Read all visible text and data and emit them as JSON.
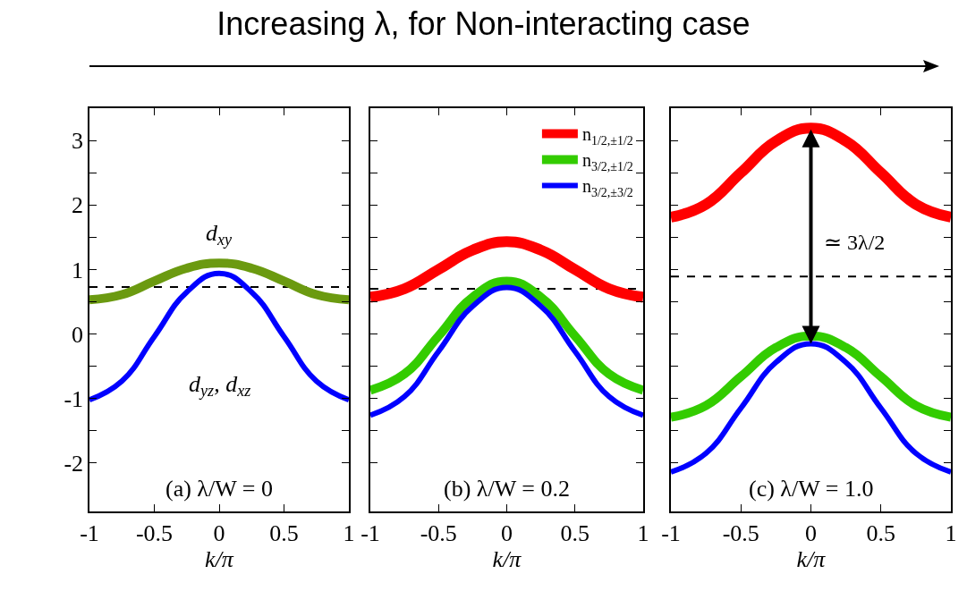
{
  "chart_data": [
    {
      "type": "line",
      "title": "Increasing λ, for Non-interacting case",
      "xlabel": "k/π",
      "x": [
        -1,
        -0.75,
        -0.5,
        -0.25,
        0,
        0.25,
        0.5,
        0.75,
        1
      ],
      "series": [
        {
          "name": "d$_{xy}$",
          "color": "#6b9a10",
          "values": [
            0.53,
            0.61,
            0.82,
            1.02,
            1.1,
            1.02,
            0.82,
            0.61,
            0.53
          ]
        },
        {
          "name": "d$_{yz}$, d$_{xz}$",
          "color": "#0000ff",
          "values": [
            -1.02,
            -0.73,
            -0.04,
            0.65,
            0.94,
            0.65,
            -0.04,
            -0.73,
            -1.02
          ]
        }
      ],
      "xlim": [
        -1,
        1
      ],
      "xticks": [
        -1,
        -0.5,
        0,
        0.5,
        1
      ],
      "ylim": [
        -2.75,
        3.5
      ],
      "yticks": [
        -2,
        {
          "value": -1.5,
          "label": null
        },
        -1,
        {
          "value": -0.5,
          "label": null
        },
        0,
        {
          "value": 0.5,
          "label": null
        },
        1,
        {
          "value": 1.5,
          "label": null
        },
        2,
        {
          "value": 2.5,
          "label": null
        },
        3
      ],
      "ref_lines": [
        {
          "axis": "y",
          "value": 0.73,
          "color": "#000000",
          "line_style": "dashed"
        }
      ],
      "annotations": [
        "(a) λ/W = 0"
      ],
      "grid": false,
      "legend": false
    },
    {
      "type": "line",
      "xlabel": "k/π",
      "x": [
        -1,
        -0.75,
        -0.5,
        -0.25,
        0,
        0.25,
        0.5,
        0.75,
        1
      ],
      "series": [
        {
          "name": "n$_{1/2,±1/2}$",
          "color": "#ff0000",
          "values": [
            0.57,
            0.7,
            1.0,
            1.3,
            1.43,
            1.3,
            1.0,
            0.7,
            0.57
          ]
        },
        {
          "name": "n$_{3/2,±1/2}$",
          "color": "#33cc00",
          "values": [
            -0.87,
            -0.62,
            -0.03,
            0.57,
            0.82,
            0.57,
            -0.03,
            -0.62,
            -0.87
          ]
        },
        {
          "name": "n$_{3/2,±3/2}$",
          "color": "#0000ff",
          "values": [
            -1.26,
            -0.97,
            -0.27,
            0.43,
            0.72,
            0.43,
            -0.27,
            -0.97,
            -1.26
          ]
        }
      ],
      "xlim": [
        -1,
        1
      ],
      "xticks": [
        -1,
        -0.5,
        0,
        0.5,
        1
      ],
      "ylim": [
        -2.75,
        3.5
      ],
      "yticks": [
        {
          "value": -2,
          "label": null
        },
        {
          "value": -1.5,
          "label": null
        },
        {
          "value": -1,
          "label": null
        },
        {
          "value": -0.5,
          "label": null
        },
        {
          "value": 0,
          "label": null
        },
        {
          "value": 0.5,
          "label": null
        },
        {
          "value": 1,
          "label": null
        },
        {
          "value": 1.5,
          "label": null
        },
        {
          "value": 2,
          "label": null
        },
        {
          "value": 2.5,
          "label": null
        },
        {
          "value": 3,
          "label": null
        }
      ],
      "tick_labels": "x",
      "ref_lines": [
        {
          "axis": "y",
          "value": 0.7,
          "color": "#000000",
          "line_style": "dashed"
        }
      ],
      "annotations": [
        "(b) λ/W = 0.2"
      ],
      "grid": false,
      "legend": "top right"
    },
    {
      "type": "line",
      "xlabel": "k/π",
      "x": [
        -1,
        -0.75,
        -0.5,
        -0.25,
        0,
        0.25,
        0.5,
        0.75,
        1
      ],
      "series": [
        {
          "color": "#ff0000",
          "values": [
            1.81,
            2.01,
            2.5,
            2.99,
            3.19,
            2.99,
            2.5,
            2.01,
            1.81
          ]
        },
        {
          "color": "#33cc00",
          "values": [
            -1.29,
            -1.11,
            -0.66,
            -0.21,
            -0.03,
            -0.21,
            -0.66,
            -1.11,
            -1.29
          ]
        },
        {
          "color": "#0000ff",
          "values": [
            -2.14,
            -1.85,
            -1.15,
            -0.44,
            -0.15,
            -0.44,
            -1.15,
            -1.85,
            -2.14
          ]
        }
      ],
      "xlim": [
        -1,
        1
      ],
      "xticks": [
        -1,
        -0.5,
        0,
        0.5,
        1
      ],
      "ylim": [
        -2.75,
        3.5
      ],
      "yticks": [
        {
          "value": -2,
          "label": null
        },
        {
          "value": -1.5,
          "label": null
        },
        {
          "value": -1,
          "label": null
        },
        {
          "value": -0.5,
          "label": null
        },
        {
          "value": 0,
          "label": null
        },
        {
          "value": 0.5,
          "label": null
        },
        {
          "value": 1,
          "label": null
        },
        {
          "value": 1.5,
          "label": null
        },
        {
          "value": 2,
          "label": null
        },
        {
          "value": 2.5,
          "label": null
        },
        {
          "value": 3,
          "label": null
        }
      ],
      "tick_labels": "x",
      "ref_lines": [
        {
          "axis": "y",
          "value": 0.89,
          "color": "#000000",
          "line_style": "dashed"
        }
      ],
      "annotations": [
        "≃ 3λ/2",
        "(c) λ/W = 1.0"
      ],
      "grid": false,
      "legend": false
    }
  ]
}
